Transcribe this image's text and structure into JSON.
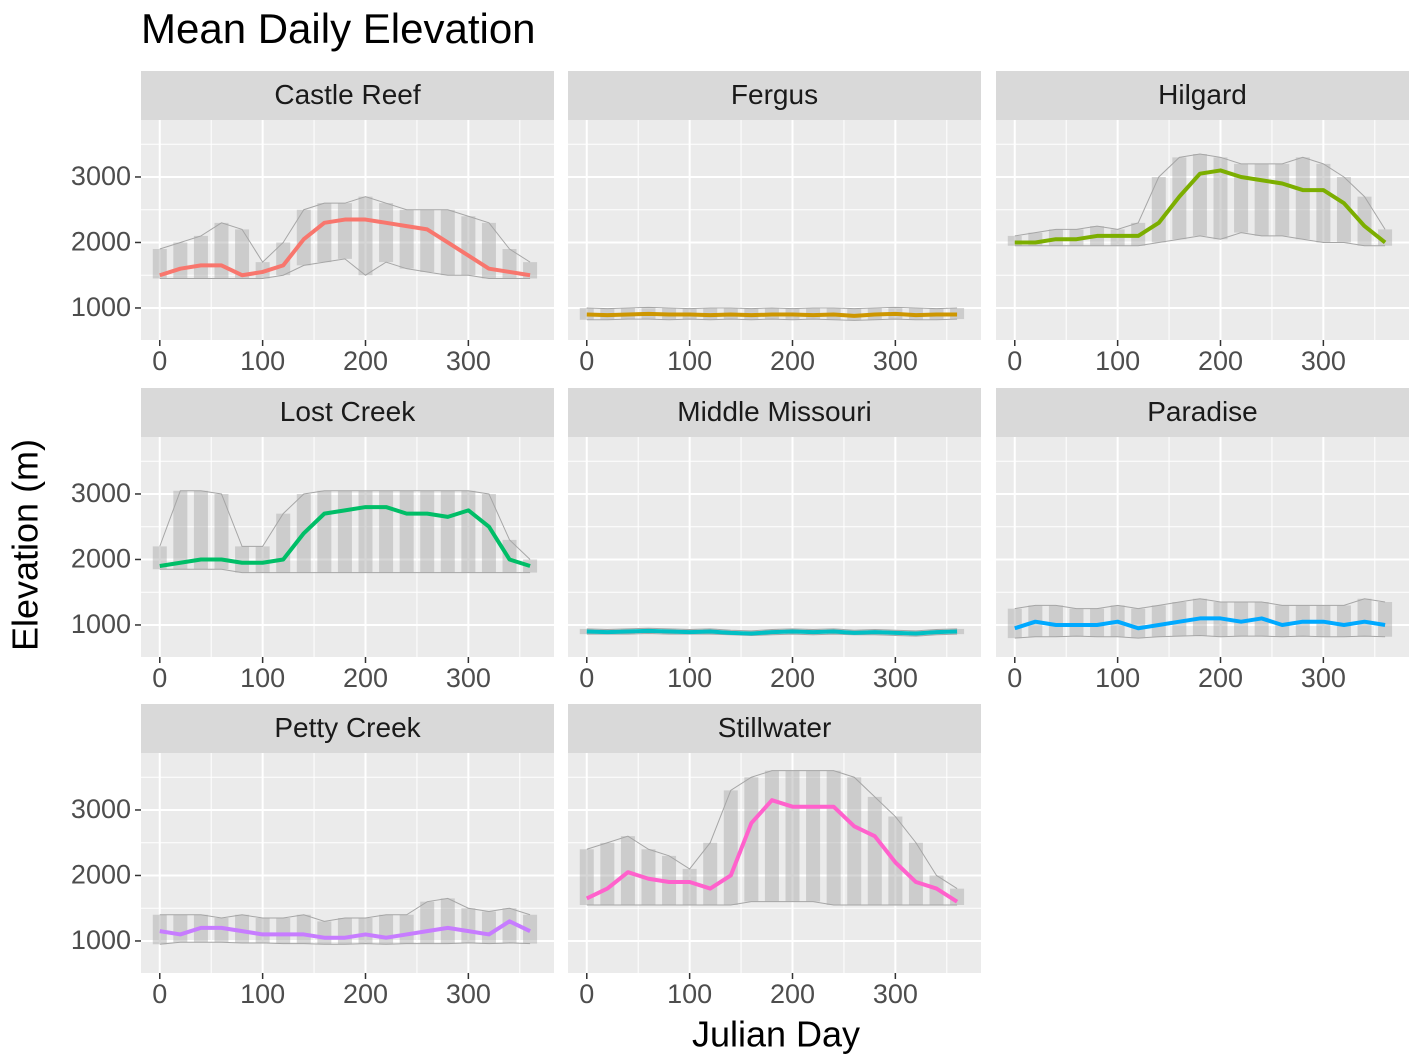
{
  "chart_data": {
    "type": "line",
    "title": "Mean Daily Elevation",
    "xlabel": "Julian Day",
    "ylabel": "Elevation (m)",
    "xlim": [
      -18.25,
      383.25
    ],
    "ylim": [
      511,
      3870
    ],
    "xticks": [
      0,
      100,
      200,
      300
    ],
    "yticks": [
      1000,
      2000,
      3000
    ],
    "grid": true,
    "envelope_color": "#a6a6a6",
    "x": [
      0,
      20,
      40,
      60,
      80,
      100,
      120,
      140,
      160,
      180,
      200,
      220,
      240,
      260,
      280,
      300,
      320,
      340,
      360
    ],
    "facets": [
      {
        "name": "Castle Reef",
        "color": "#F8766D",
        "values": [
          1500,
          1600,
          1650,
          1650,
          1500,
          1550,
          1650,
          2050,
          2300,
          2350,
          2350,
          2300,
          2250,
          2200,
          2000,
          1800,
          1600,
          1550,
          1500
        ],
        "low": [
          1450,
          1450,
          1450,
          1450,
          1450,
          1450,
          1500,
          1650,
          1700,
          1750,
          1500,
          1700,
          1600,
          1550,
          1500,
          1500,
          1450,
          1450,
          1450
        ],
        "high": [
          1900,
          2000,
          2100,
          2300,
          2200,
          1700,
          2000,
          2500,
          2600,
          2600,
          2700,
          2600,
          2500,
          2500,
          2500,
          2400,
          2300,
          1900,
          1700
        ]
      },
      {
        "name": "Fergus",
        "color": "#CD9600",
        "values": [
          900,
          890,
          900,
          910,
          900,
          900,
          890,
          900,
          890,
          900,
          900,
          890,
          900,
          880,
          900,
          910,
          890,
          900,
          900
        ],
        "low": [
          820,
          820,
          830,
          830,
          820,
          830,
          820,
          830,
          820,
          830,
          820,
          830,
          820,
          810,
          820,
          830,
          820,
          820,
          830
        ],
        "high": [
          1000,
          990,
          1000,
          1010,
          1000,
          990,
          1000,
          1000,
          990,
          1000,
          990,
          1000,
          1000,
          990,
          1000,
          1010,
          1000,
          990,
          1000
        ]
      },
      {
        "name": "Hilgard",
        "color": "#7CAE00",
        "values": [
          2000,
          2000,
          2050,
          2050,
          2100,
          2100,
          2100,
          2300,
          2700,
          3050,
          3100,
          3000,
          2950,
          2900,
          2800,
          2800,
          2600,
          2250,
          2000
        ],
        "low": [
          1950,
          1950,
          1950,
          1950,
          1950,
          1950,
          1950,
          2000,
          2050,
          2100,
          2050,
          2150,
          2100,
          2100,
          2050,
          2000,
          2000,
          1950,
          1950
        ],
        "high": [
          2100,
          2150,
          2200,
          2200,
          2250,
          2200,
          2300,
          3000,
          3300,
          3350,
          3300,
          3200,
          3200,
          3200,
          3300,
          3200,
          3000,
          2700,
          2200
        ]
      },
      {
        "name": "Lost Creek",
        "color": "#00BE67",
        "values": [
          1900,
          1950,
          2000,
          2000,
          1950,
          1950,
          2000,
          2400,
          2700,
          2750,
          2800,
          2800,
          2700,
          2700,
          2650,
          2750,
          2500,
          2000,
          1900
        ],
        "low": [
          1850,
          1850,
          1850,
          1850,
          1800,
          1800,
          1800,
          1800,
          1800,
          1800,
          1800,
          1800,
          1800,
          1800,
          1800,
          1800,
          1800,
          1800,
          1800
        ],
        "high": [
          2200,
          3050,
          3050,
          3000,
          2200,
          2200,
          2700,
          3000,
          3050,
          3050,
          3050,
          3050,
          3050,
          3050,
          3050,
          3050,
          3000,
          2300,
          2000
        ]
      },
      {
        "name": "Middle Missouri",
        "color": "#00BFC4",
        "values": [
          900,
          890,
          900,
          910,
          900,
          890,
          900,
          880,
          870,
          890,
          900,
          890,
          900,
          880,
          890,
          880,
          870,
          890,
          900
        ],
        "low": [
          860,
          860,
          860,
          870,
          860,
          860,
          860,
          850,
          840,
          850,
          860,
          850,
          860,
          850,
          850,
          840,
          830,
          850,
          860
        ],
        "high": [
          940,
          930,
          940,
          950,
          940,
          930,
          940,
          920,
          910,
          930,
          940,
          930,
          940,
          920,
          930,
          920,
          910,
          930,
          940
        ]
      },
      {
        "name": "Paradise",
        "color": "#00A9FF",
        "values": [
          950,
          1050,
          1000,
          1000,
          1000,
          1050,
          950,
          1000,
          1050,
          1100,
          1100,
          1050,
          1100,
          1000,
          1050,
          1050,
          1000,
          1050,
          1000
        ],
        "low": [
          800,
          820,
          820,
          830,
          820,
          820,
          800,
          820,
          830,
          840,
          820,
          830,
          830,
          820,
          830,
          820,
          820,
          830,
          820
        ],
        "high": [
          1250,
          1300,
          1300,
          1250,
          1250,
          1300,
          1250,
          1300,
          1350,
          1400,
          1350,
          1350,
          1350,
          1300,
          1300,
          1300,
          1300,
          1400,
          1350
        ]
      },
      {
        "name": "Petty Creek",
        "color": "#C77CFF",
        "values": [
          1150,
          1100,
          1200,
          1200,
          1150,
          1100,
          1100,
          1100,
          1050,
          1050,
          1100,
          1050,
          1100,
          1150,
          1200,
          1150,
          1100,
          1300,
          1150
        ],
        "low": [
          950,
          980,
          980,
          980,
          970,
          970,
          960,
          960,
          950,
          950,
          960,
          950,
          960,
          960,
          960,
          970,
          960,
          970,
          960
        ],
        "high": [
          1400,
          1400,
          1400,
          1350,
          1400,
          1350,
          1350,
          1400,
          1300,
          1350,
          1350,
          1400,
          1400,
          1600,
          1650,
          1500,
          1450,
          1500,
          1400
        ]
      },
      {
        "name": "Stillwater",
        "color": "#FF61CC",
        "values": [
          1650,
          1800,
          2050,
          1950,
          1900,
          1900,
          1800,
          2000,
          2800,
          3150,
          3050,
          3050,
          3050,
          2750,
          2600,
          2200,
          1900,
          1800,
          1600
        ],
        "low": [
          1550,
          1550,
          1550,
          1550,
          1550,
          1550,
          1550,
          1550,
          1600,
          1600,
          1600,
          1600,
          1550,
          1550,
          1550,
          1550,
          1550,
          1550,
          1550
        ],
        "high": [
          2400,
          2500,
          2600,
          2400,
          2300,
          2100,
          2500,
          3300,
          3500,
          3600,
          3600,
          3600,
          3600,
          3500,
          3200,
          2900,
          2500,
          2000,
          1800
        ]
      }
    ]
  }
}
